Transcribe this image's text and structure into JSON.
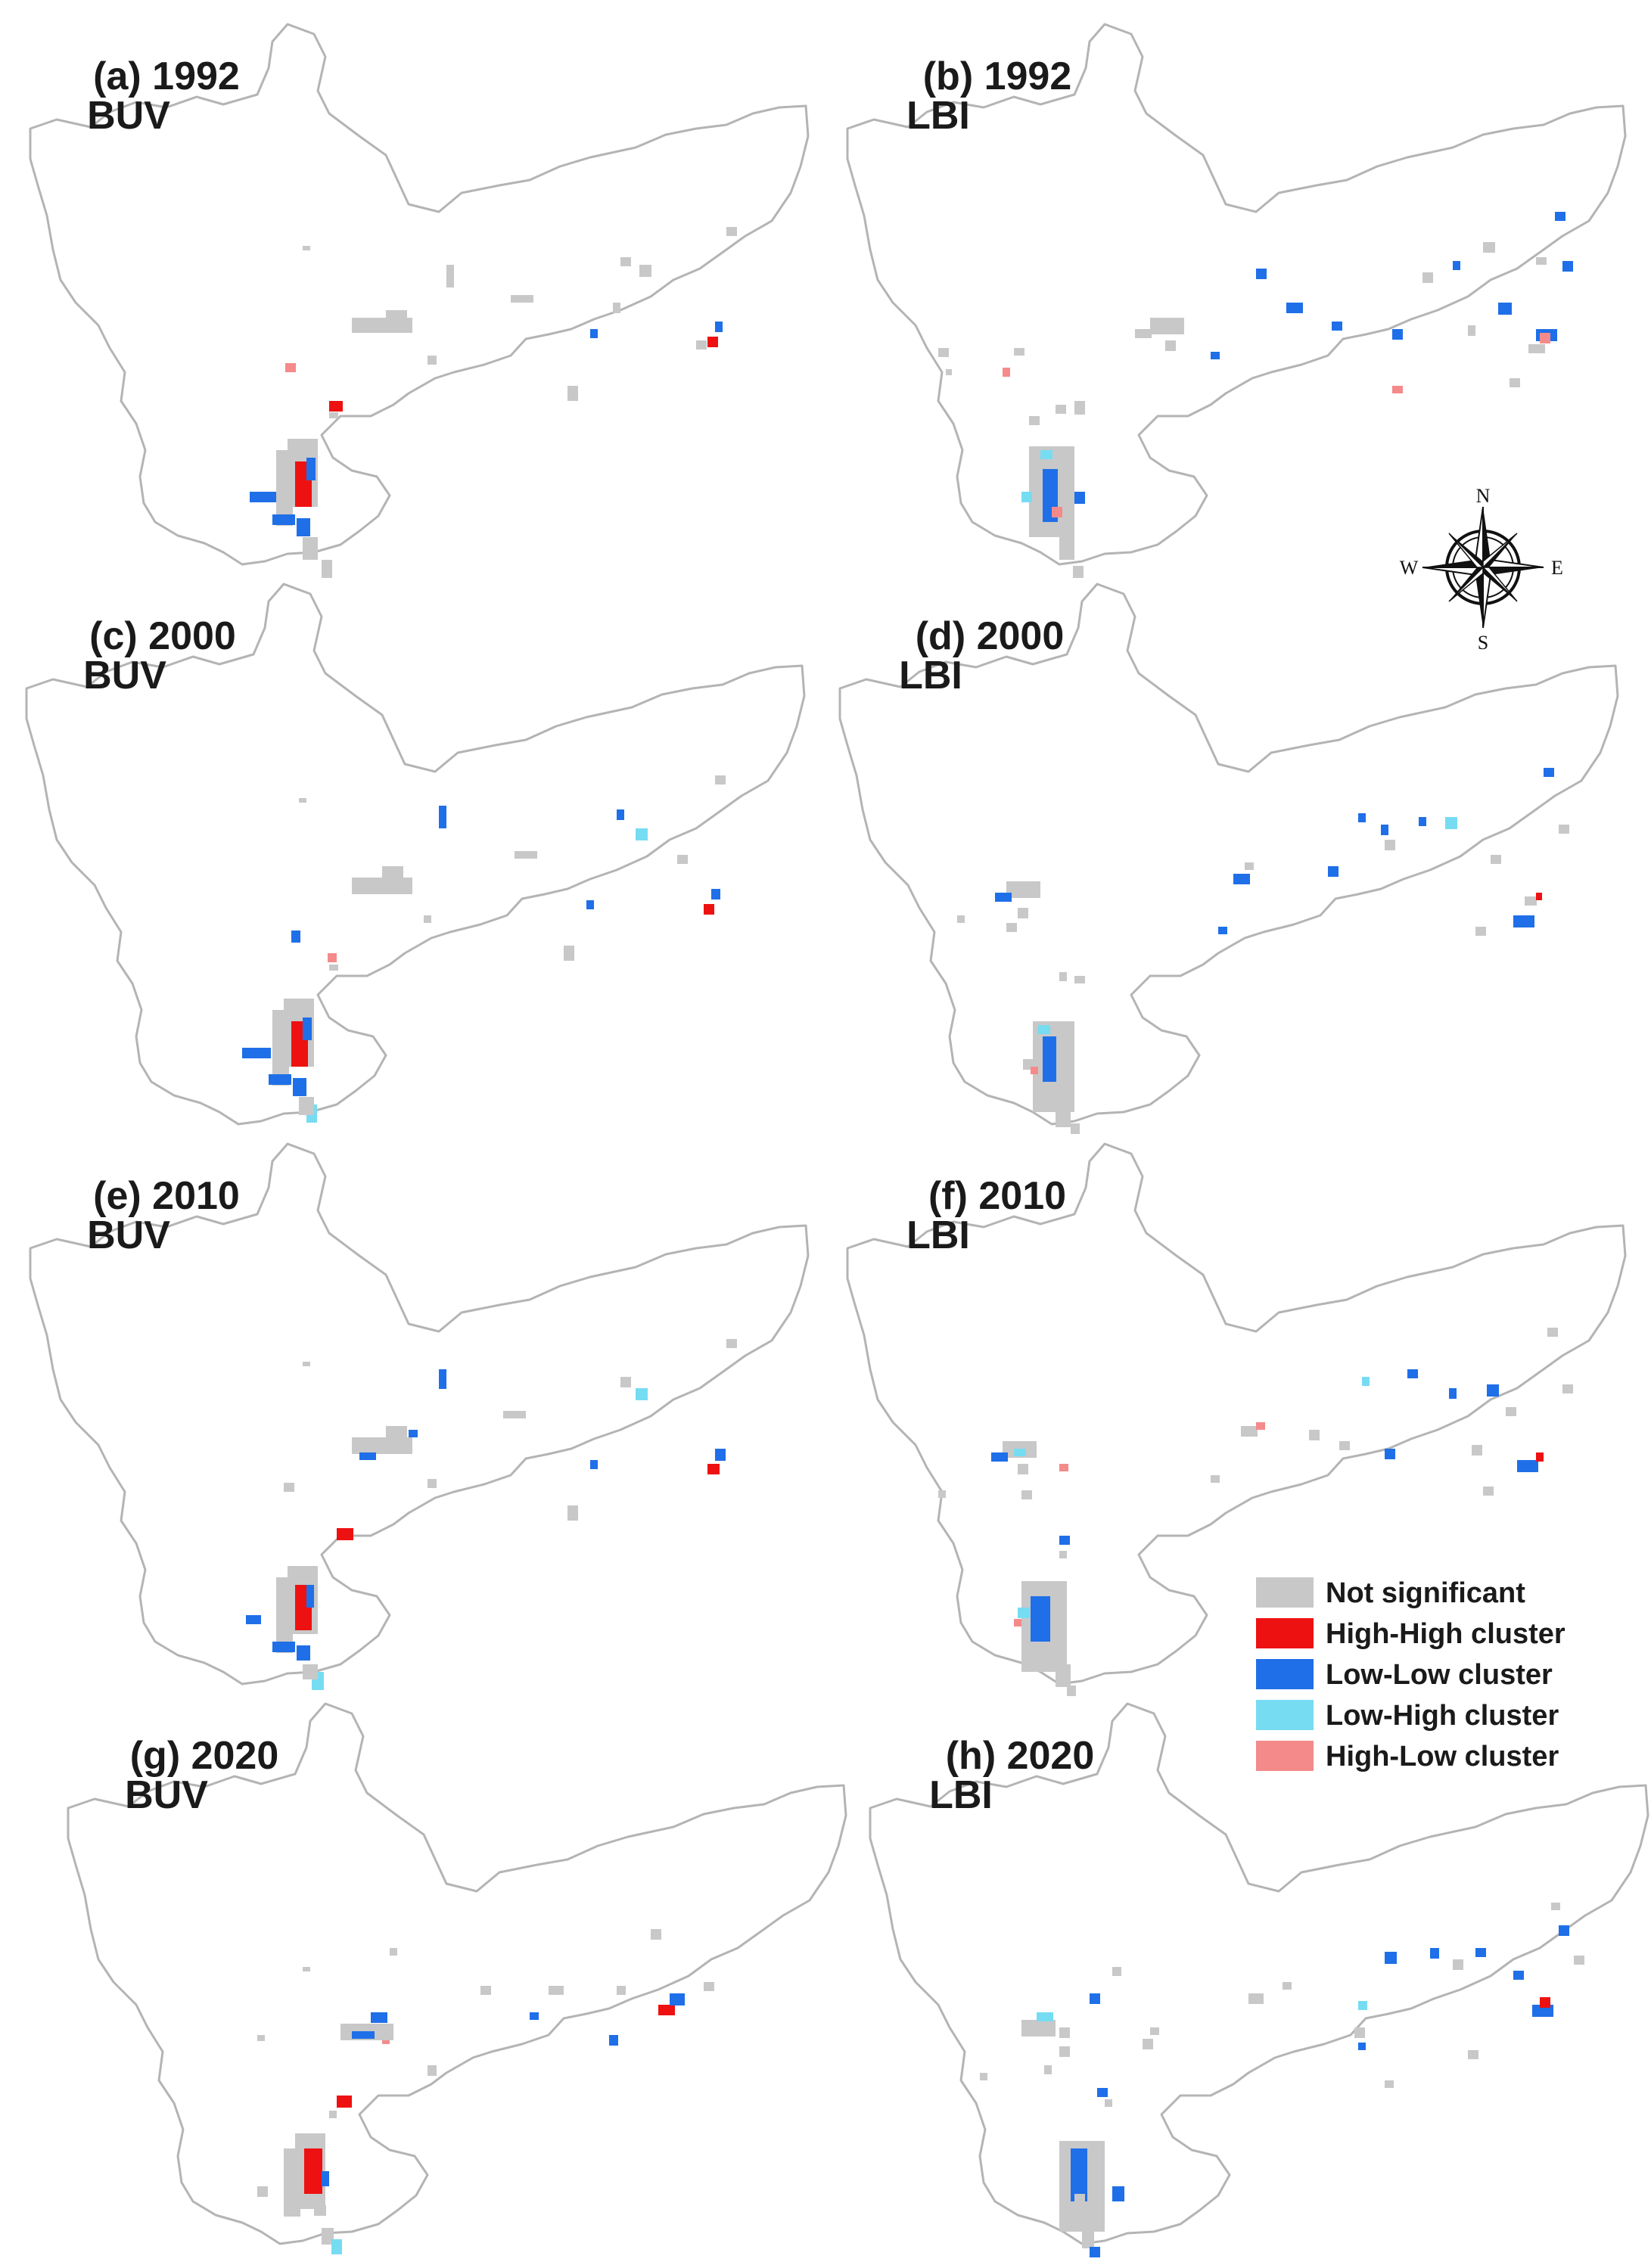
{
  "colors": {
    "not_significant": "#c8c8c8",
    "high_high": "#ee1111",
    "low_low": "#1f6fe8",
    "low_high": "#76dcf2",
    "high_low": "#f58a8a",
    "boundary": "#b4b4b4"
  },
  "panels": [
    {
      "id": "a",
      "label": "(a) 1992",
      "sub": "BUV",
      "type": "BUV",
      "ox": 20,
      "oy": 30
    },
    {
      "id": "b",
      "label": "(b) 1992",
      "sub": "LBI",
      "type": "LBI",
      "ox": 1100,
      "oy": 30
    },
    {
      "id": "c",
      "label": "(c) 2000",
      "sub": "BUV",
      "type": "BUV",
      "ox": 15,
      "oy": 770
    },
    {
      "id": "d",
      "label": "(d) 2000",
      "sub": "LBI",
      "type": "LBI",
      "ox": 1090,
      "oy": 770
    },
    {
      "id": "e",
      "label": "(e) 2010",
      "sub": "BUV",
      "type": "BUV",
      "ox": 20,
      "oy": 1510
    },
    {
      "id": "f",
      "label": "(f) 2010",
      "sub": "LBI",
      "type": "LBI",
      "ox": 1100,
      "oy": 1510
    },
    {
      "id": "g",
      "label": "(g) 2020",
      "sub": "BUV",
      "type": "BUV",
      "ox": 70,
      "oy": 2250
    },
    {
      "id": "h",
      "label": "(h) 2020",
      "sub": "LBI",
      "type": "LBI",
      "ox": 1130,
      "oy": 2250
    }
  ],
  "compass": {
    "icon": "compass-rose-icon",
    "n": "N",
    "s": "S",
    "e": "E",
    "w": "W"
  },
  "legend": [
    {
      "label": "Not significant",
      "color": "#c8c8c8"
    },
    {
      "label": "High-High cluster",
      "color": "#ee1111"
    },
    {
      "label": "Low-Low cluster",
      "color": "#1f6fe8"
    },
    {
      "label": "Low-High cluster",
      "color": "#76dcf2"
    },
    {
      "label": "High-Low cluster",
      "color": "#f58a8a"
    }
  ]
}
